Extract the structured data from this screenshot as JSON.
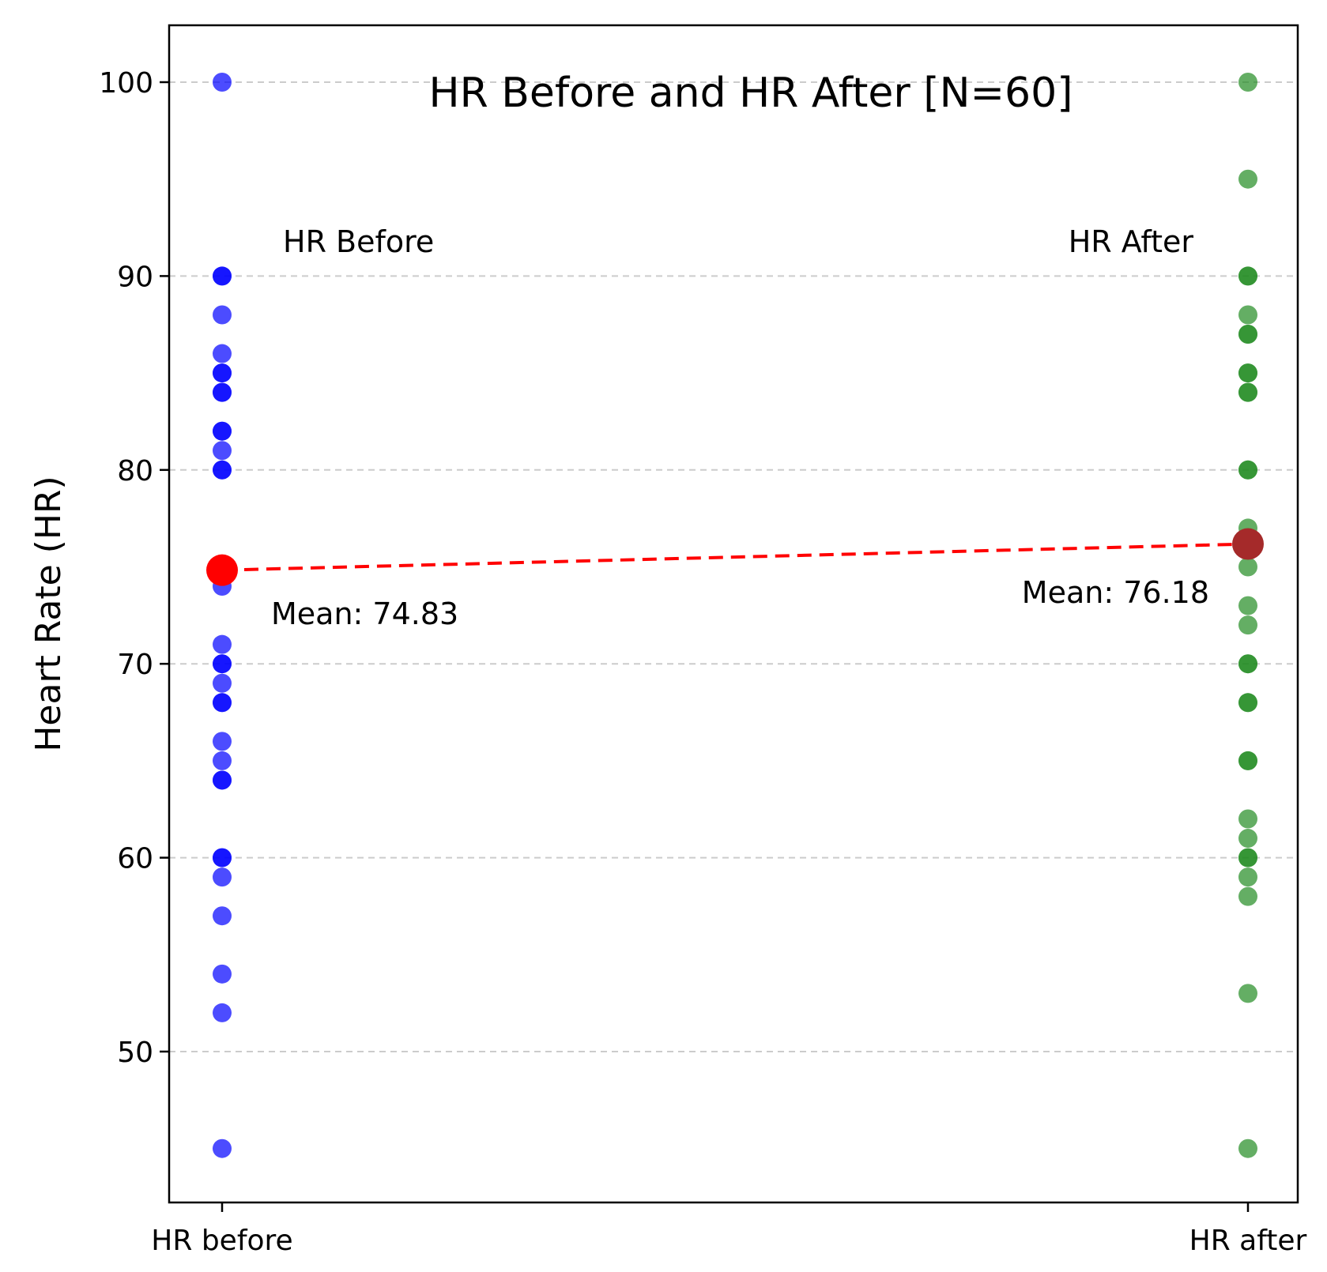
{
  "chart_data": {
    "type": "scatter",
    "title": "HR Before and HR After [N=60]",
    "xlabel": "",
    "ylabel": "Heart Rate (HR)",
    "categories": [
      "HR before",
      "HR after"
    ],
    "ylim": [
      42,
      103
    ],
    "yticks": [
      50,
      60,
      70,
      80,
      90,
      100
    ],
    "grid": true,
    "series": [
      {
        "name": "HR Before",
        "category": "HR before",
        "color": "#0000ff",
        "values": [
          100,
          90,
          90,
          88,
          86,
          85,
          85,
          84,
          84,
          82,
          82,
          81,
          80,
          80,
          74,
          71,
          70,
          70,
          69,
          68,
          68,
          66,
          65,
          64,
          64,
          60,
          60,
          59,
          57,
          54,
          52,
          45
        ]
      },
      {
        "name": "HR After",
        "category": "HR after",
        "color": "#228b22",
        "values": [
          100,
          95,
          90,
          90,
          88,
          87,
          87,
          85,
          85,
          84,
          84,
          80,
          80,
          77,
          76,
          75,
          73,
          72,
          70,
          70,
          68,
          68,
          65,
          65,
          62,
          61,
          60,
          60,
          59,
          58,
          53,
          45
        ]
      }
    ],
    "means": [
      {
        "category": "HR before",
        "value": 74.83,
        "color": "#ff0000",
        "label": "Mean: 74.83"
      },
      {
        "category": "HR after",
        "value": 76.18,
        "color": "#a52a2a",
        "label": "Mean: 76.18"
      }
    ],
    "mean_line": {
      "color": "#ff0000",
      "style": "dashed"
    },
    "annotations": {
      "before_label": "HR Before",
      "after_label": "HR After"
    }
  }
}
